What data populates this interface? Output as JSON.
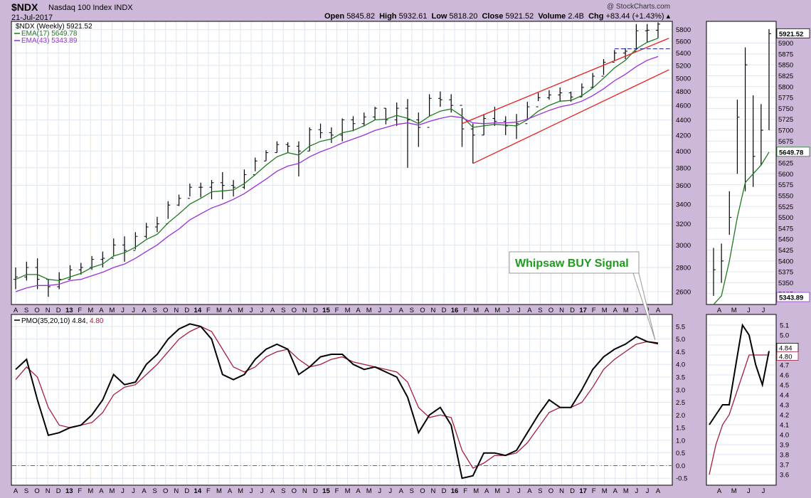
{
  "header": {
    "symbol": "$NDX",
    "name": "Nasdaq 100 Index  INDX",
    "date": "21-Jul-2017",
    "watermark": "@ StockCharts.com",
    "open_label": "Open",
    "open": "5845.82",
    "high_label": "High",
    "high": "5932.61",
    "low_label": "Low",
    "low": "5818.20",
    "close_label": "Close",
    "close": "5921.52",
    "volume_label": "Volume",
    "volume": "2.4B",
    "chg_label": "Chg",
    "chg": "+83.44 (+1.43%)"
  },
  "colors": {
    "price": "#000000",
    "ema17": "#1e7a1e",
    "ema43": "#9b30d9",
    "channel": "#e8201e",
    "pmo": "#000000",
    "signal": "#a61e3c",
    "annotation_text": "#1f9a1f",
    "background": "#cdb8d9",
    "panel": "#ffffff",
    "grid": "#dfe6ef"
  },
  "chart_data": [
    {
      "type": "ohlc",
      "panel": "price-weekly",
      "title": "",
      "legend": [
        {
          "name": "$NDX (Weekly) 5921.52",
          "color": "#000000"
        },
        {
          "name": "EMA(17) 5649.78",
          "color": "#1e7a1e"
        },
        {
          "name": "EMA(43) 5343.89",
          "color": "#9b30d9"
        }
      ],
      "x_tick_labels": [
        "A",
        "S",
        "O",
        "N",
        "D",
        "13",
        "F",
        "M",
        "A",
        "M",
        "J",
        "J",
        "A",
        "S",
        "O",
        "N",
        "D",
        "14",
        "F",
        "M",
        "A",
        "M",
        "J",
        "J",
        "A",
        "S",
        "O",
        "N",
        "D",
        "15",
        "F",
        "M",
        "A",
        "M",
        "J",
        "J",
        "A",
        "S",
        "O",
        "N",
        "D",
        "16",
        "F",
        "M",
        "A",
        "M",
        "J",
        "J",
        "A",
        "S",
        "O",
        "N",
        "D",
        "17",
        "F",
        "M",
        "A",
        "M",
        "J",
        "J",
        "A"
      ],
      "x": [
        "2012-08",
        "2012-09",
        "2012-10",
        "2012-11",
        "2012-12",
        "2013-01",
        "2013-02",
        "2013-03",
        "2013-04",
        "2013-05",
        "2013-06",
        "2013-07",
        "2013-08",
        "2013-09",
        "2013-10",
        "2013-11",
        "2013-12",
        "2014-01",
        "2014-02",
        "2014-03",
        "2014-04",
        "2014-05",
        "2014-06",
        "2014-07",
        "2014-08",
        "2014-09",
        "2014-10",
        "2014-11",
        "2014-12",
        "2015-01",
        "2015-02",
        "2015-03",
        "2015-04",
        "2015-05",
        "2015-06",
        "2015-07",
        "2015-08",
        "2015-09",
        "2015-10",
        "2015-11",
        "2015-12",
        "2016-01",
        "2016-02",
        "2016-03",
        "2016-04",
        "2016-05",
        "2016-06",
        "2016-07",
        "2016-08",
        "2016-09",
        "2016-10",
        "2016-11",
        "2016-12",
        "2017-01",
        "2017-02",
        "2017-03",
        "2017-04",
        "2017-05",
        "2017-06",
        "2017-07"
      ],
      "close": [
        2720,
        2800,
        2700,
        2640,
        2700,
        2780,
        2800,
        2870,
        2880,
        3000,
        2950,
        3080,
        3170,
        3200,
        3390,
        3460,
        3580,
        3580,
        3630,
        3600,
        3580,
        3720,
        3880,
        3980,
        4080,
        4060,
        4000,
        4270,
        4230,
        4200,
        4400,
        4350,
        4440,
        4560,
        4400,
        4560,
        4400,
        4300,
        4700,
        4680,
        4600,
        4280,
        4200,
        4420,
        4380,
        4320,
        4350,
        4580,
        4710,
        4750,
        4780,
        4720,
        4860,
        5030,
        5250,
        5400,
        5430,
        5780,
        5790,
        5900
      ],
      "high": [
        2800,
        2850,
        2880,
        2700,
        2760,
        2820,
        2840,
        2900,
        2940,
        3060,
        3080,
        3120,
        3210,
        3270,
        3430,
        3500,
        3620,
        3630,
        3660,
        3750,
        3660,
        3780,
        3920,
        4010,
        4120,
        4110,
        4120,
        4300,
        4350,
        4300,
        4420,
        4450,
        4500,
        4580,
        4560,
        4640,
        4690,
        4500,
        4760,
        4800,
        4760,
        4560,
        4350,
        4480,
        4580,
        4450,
        4480,
        4650,
        4780,
        4820,
        4860,
        4800,
        4920,
        5080,
        5300,
        5450,
        5480,
        5900,
        5900,
        5932
      ],
      "low": [
        2620,
        2690,
        2620,
        2560,
        2620,
        2700,
        2740,
        2780,
        2800,
        2900,
        2850,
        2960,
        3060,
        3120,
        3250,
        3380,
        3480,
        3470,
        3450,
        3450,
        3480,
        3560,
        3760,
        3880,
        3980,
        3980,
        3700,
        4000,
        4160,
        4100,
        4120,
        4250,
        4320,
        4400,
        4340,
        4320,
        3800,
        4050,
        4450,
        4580,
        4500,
        4050,
        3850,
        4200,
        4320,
        4200,
        4150,
        4400,
        4660,
        4680,
        4650,
        4650,
        4720,
        4850,
        5050,
        5280,
        5300,
        5450,
        5580,
        5650
      ],
      "ema17": [
        2700,
        2740,
        2740,
        2700,
        2690,
        2720,
        2750,
        2800,
        2830,
        2900,
        2930,
        2980,
        3050,
        3100,
        3210,
        3300,
        3400,
        3460,
        3530,
        3540,
        3550,
        3620,
        3720,
        3830,
        3930,
        3980,
        3950,
        4060,
        4120,
        4150,
        4230,
        4260,
        4320,
        4400,
        4410,
        4460,
        4420,
        4350,
        4450,
        4520,
        4550,
        4450,
        4300,
        4320,
        4340,
        4330,
        4320,
        4400,
        4520,
        4600,
        4660,
        4670,
        4740,
        4850,
        5000,
        5160,
        5280,
        5470,
        5580,
        5650
      ],
      "ema43": [
        2600,
        2630,
        2650,
        2650,
        2660,
        2690,
        2700,
        2730,
        2760,
        2800,
        2830,
        2880,
        2940,
        3000,
        3080,
        3150,
        3240,
        3300,
        3360,
        3400,
        3450,
        3510,
        3590,
        3670,
        3760,
        3820,
        3850,
        3930,
        3990,
        4040,
        4100,
        4150,
        4200,
        4260,
        4300,
        4340,
        4360,
        4330,
        4380,
        4420,
        4450,
        4430,
        4360,
        4350,
        4360,
        4360,
        4370,
        4410,
        4470,
        4530,
        4580,
        4610,
        4660,
        4740,
        4840,
        4960,
        5060,
        5180,
        5280,
        5343
      ],
      "channel_lines": [
        {
          "from": [
            "2016-01",
            4350
          ],
          "to": [
            "2017-08",
            5650
          ]
        },
        {
          "from": [
            "2016-02",
            3850
          ],
          "to": [
            "2017-08",
            5130
          ]
        }
      ],
      "horizontal_level": 5470,
      "ylim": [
        2500,
        5950
      ],
      "y_ticks": [
        2600,
        2800,
        3000,
        3200,
        3400,
        3600,
        3800,
        4000,
        4200,
        4400,
        4600,
        4800,
        5000,
        5200,
        5400,
        5600,
        5800
      ],
      "log_scale": true,
      "grid": true,
      "legend_position": "top-left"
    },
    {
      "type": "line",
      "panel": "pmo-weekly",
      "legend": [
        {
          "name": "PMO(35,20,10) 4.84,",
          "color": "#000000"
        },
        {
          "name": "4.80",
          "color": "#a61e3c"
        }
      ],
      "x": [
        "2012-08",
        "2012-09",
        "2012-10",
        "2012-11",
        "2012-12",
        "2013-01",
        "2013-02",
        "2013-03",
        "2013-04",
        "2013-05",
        "2013-06",
        "2013-07",
        "2013-08",
        "2013-09",
        "2013-10",
        "2013-11",
        "2013-12",
        "2014-01",
        "2014-02",
        "2014-03",
        "2014-04",
        "2014-05",
        "2014-06",
        "2014-07",
        "2014-08",
        "2014-09",
        "2014-10",
        "2014-11",
        "2014-12",
        "2015-01",
        "2015-02",
        "2015-03",
        "2015-04",
        "2015-05",
        "2015-06",
        "2015-07",
        "2015-08",
        "2015-09",
        "2015-10",
        "2015-11",
        "2015-12",
        "2016-01",
        "2016-02",
        "2016-03",
        "2016-04",
        "2016-05",
        "2016-06",
        "2016-07",
        "2016-08",
        "2016-09",
        "2016-10",
        "2016-11",
        "2016-12",
        "2017-01",
        "2017-02",
        "2017-03",
        "2017-04",
        "2017-05",
        "2017-06",
        "2017-07"
      ],
      "series": [
        {
          "name": "PMO",
          "values": [
            3.8,
            4.2,
            2.6,
            1.2,
            1.3,
            1.5,
            1.6,
            2.0,
            2.6,
            3.6,
            3.2,
            3.3,
            4.0,
            4.4,
            5.0,
            5.4,
            5.6,
            5.5,
            5.0,
            3.6,
            3.4,
            3.6,
            4.2,
            4.6,
            4.8,
            4.6,
            3.6,
            3.9,
            4.3,
            4.4,
            4.4,
            4.0,
            3.8,
            3.9,
            3.7,
            3.5,
            2.7,
            1.3,
            2.0,
            2.3,
            1.6,
            -0.5,
            -0.4,
            0.5,
            0.5,
            0.4,
            0.6,
            1.3,
            2.0,
            2.6,
            2.3,
            2.3,
            3.0,
            3.8,
            4.3,
            4.6,
            4.8,
            5.1,
            4.9,
            4.84
          ]
        },
        {
          "name": "Signal",
          "values": [
            3.4,
            3.9,
            3.5,
            2.3,
            1.6,
            1.5,
            1.6,
            1.7,
            2.1,
            2.8,
            3.1,
            3.2,
            3.6,
            4.0,
            4.5,
            5.0,
            5.3,
            5.5,
            5.3,
            4.6,
            3.9,
            3.7,
            3.9,
            4.3,
            4.5,
            4.6,
            4.2,
            3.9,
            4.0,
            4.2,
            4.3,
            4.1,
            4.0,
            3.9,
            3.8,
            3.7,
            3.3,
            2.3,
            1.9,
            2.0,
            1.9,
            0.6,
            -0.1,
            0.1,
            0.4,
            0.4,
            0.5,
            0.9,
            1.5,
            2.1,
            2.3,
            2.3,
            2.5,
            3.1,
            3.8,
            4.2,
            4.5,
            4.8,
            4.9,
            4.8
          ]
        }
      ],
      "zero_line": 0,
      "ylim": [
        -0.55,
        5.75
      ],
      "y_ticks": [
        -0.5,
        0.0,
        0.5,
        1.0,
        1.5,
        2.0,
        2.5,
        3.0,
        3.5,
        4.0,
        4.5,
        5.0,
        5.5
      ],
      "y_tick_labels": [
        "-0.5",
        "0.0",
        "0.5",
        "1.0",
        "1.5",
        "2.0",
        "2.5",
        "3.0",
        "3.5",
        "4.0",
        "4.5",
        "5.0",
        "5.5"
      ],
      "grid": true,
      "annotation": {
        "text": "Whipsaw BUY Signal",
        "target_x": "2017-07"
      }
    },
    {
      "type": "ohlc",
      "panel": "price-daily-zoom",
      "x_tick_labels": [
        "A",
        "M",
        "J",
        "J"
      ],
      "x": [
        "2017-04-01",
        "2017-04-15",
        "2017-05-01",
        "2017-05-15",
        "2017-06-01",
        "2017-06-15",
        "2017-07-01",
        "2017-07-15"
      ],
      "close": [
        5380,
        5400,
        5500,
        5730,
        5850,
        5640,
        5700,
        5921.52
      ],
      "high": [
        5430,
        5440,
        5560,
        5770,
        5890,
        5780,
        5760,
        5932
      ],
      "low": [
        5320,
        5350,
        5460,
        5600,
        5560,
        5570,
        5620,
        5700
      ],
      "ema17": [
        5300,
        5320,
        5400,
        5500,
        5580,
        5600,
        5620,
        5649.78
      ],
      "ylim": [
        5310,
        5940
      ],
      "y_ticks": [
        5325,
        5350,
        5375,
        5400,
        5425,
        5450,
        5475,
        5500,
        5525,
        5550,
        5575,
        5600,
        5625,
        5650,
        5675,
        5700,
        5725,
        5750,
        5775,
        5800,
        5825,
        5850,
        5875,
        5900
      ],
      "value_labels": [
        "5921.52",
        "5649.78",
        "5343.89"
      ]
    },
    {
      "type": "line",
      "panel": "pmo-daily-zoom",
      "x_tick_labels": [
        "A",
        "M",
        "J",
        "J"
      ],
      "series": [
        {
          "name": "PMO",
          "values": [
            4.1,
            4.2,
            4.3,
            4.3,
            4.7,
            5.1,
            5.0,
            4.7,
            4.5,
            4.84
          ]
        },
        {
          "name": "Signal",
          "values": [
            3.6,
            3.9,
            4.1,
            4.2,
            4.4,
            4.6,
            4.8,
            4.8,
            4.8,
            4.8
          ]
        }
      ],
      "ylim": [
        3.55,
        5.15
      ],
      "y_ticks": [
        3.6,
        3.7,
        3.8,
        3.9,
        4.0,
        4.1,
        4.2,
        4.3,
        4.4,
        4.5,
        4.6,
        4.7,
        4.8,
        4.9,
        5.0,
        5.1
      ],
      "y_tick_labels": [
        "3.6",
        "3.7",
        "3.8",
        "3.9",
        "4.0",
        "4.1",
        "4.2",
        "4.3",
        "4.4",
        "4.5",
        "4.6",
        "4.7",
        "4.8",
        "4.9",
        "5.0",
        "5.1"
      ],
      "value_labels": [
        "4.84",
        "4.80"
      ]
    }
  ]
}
